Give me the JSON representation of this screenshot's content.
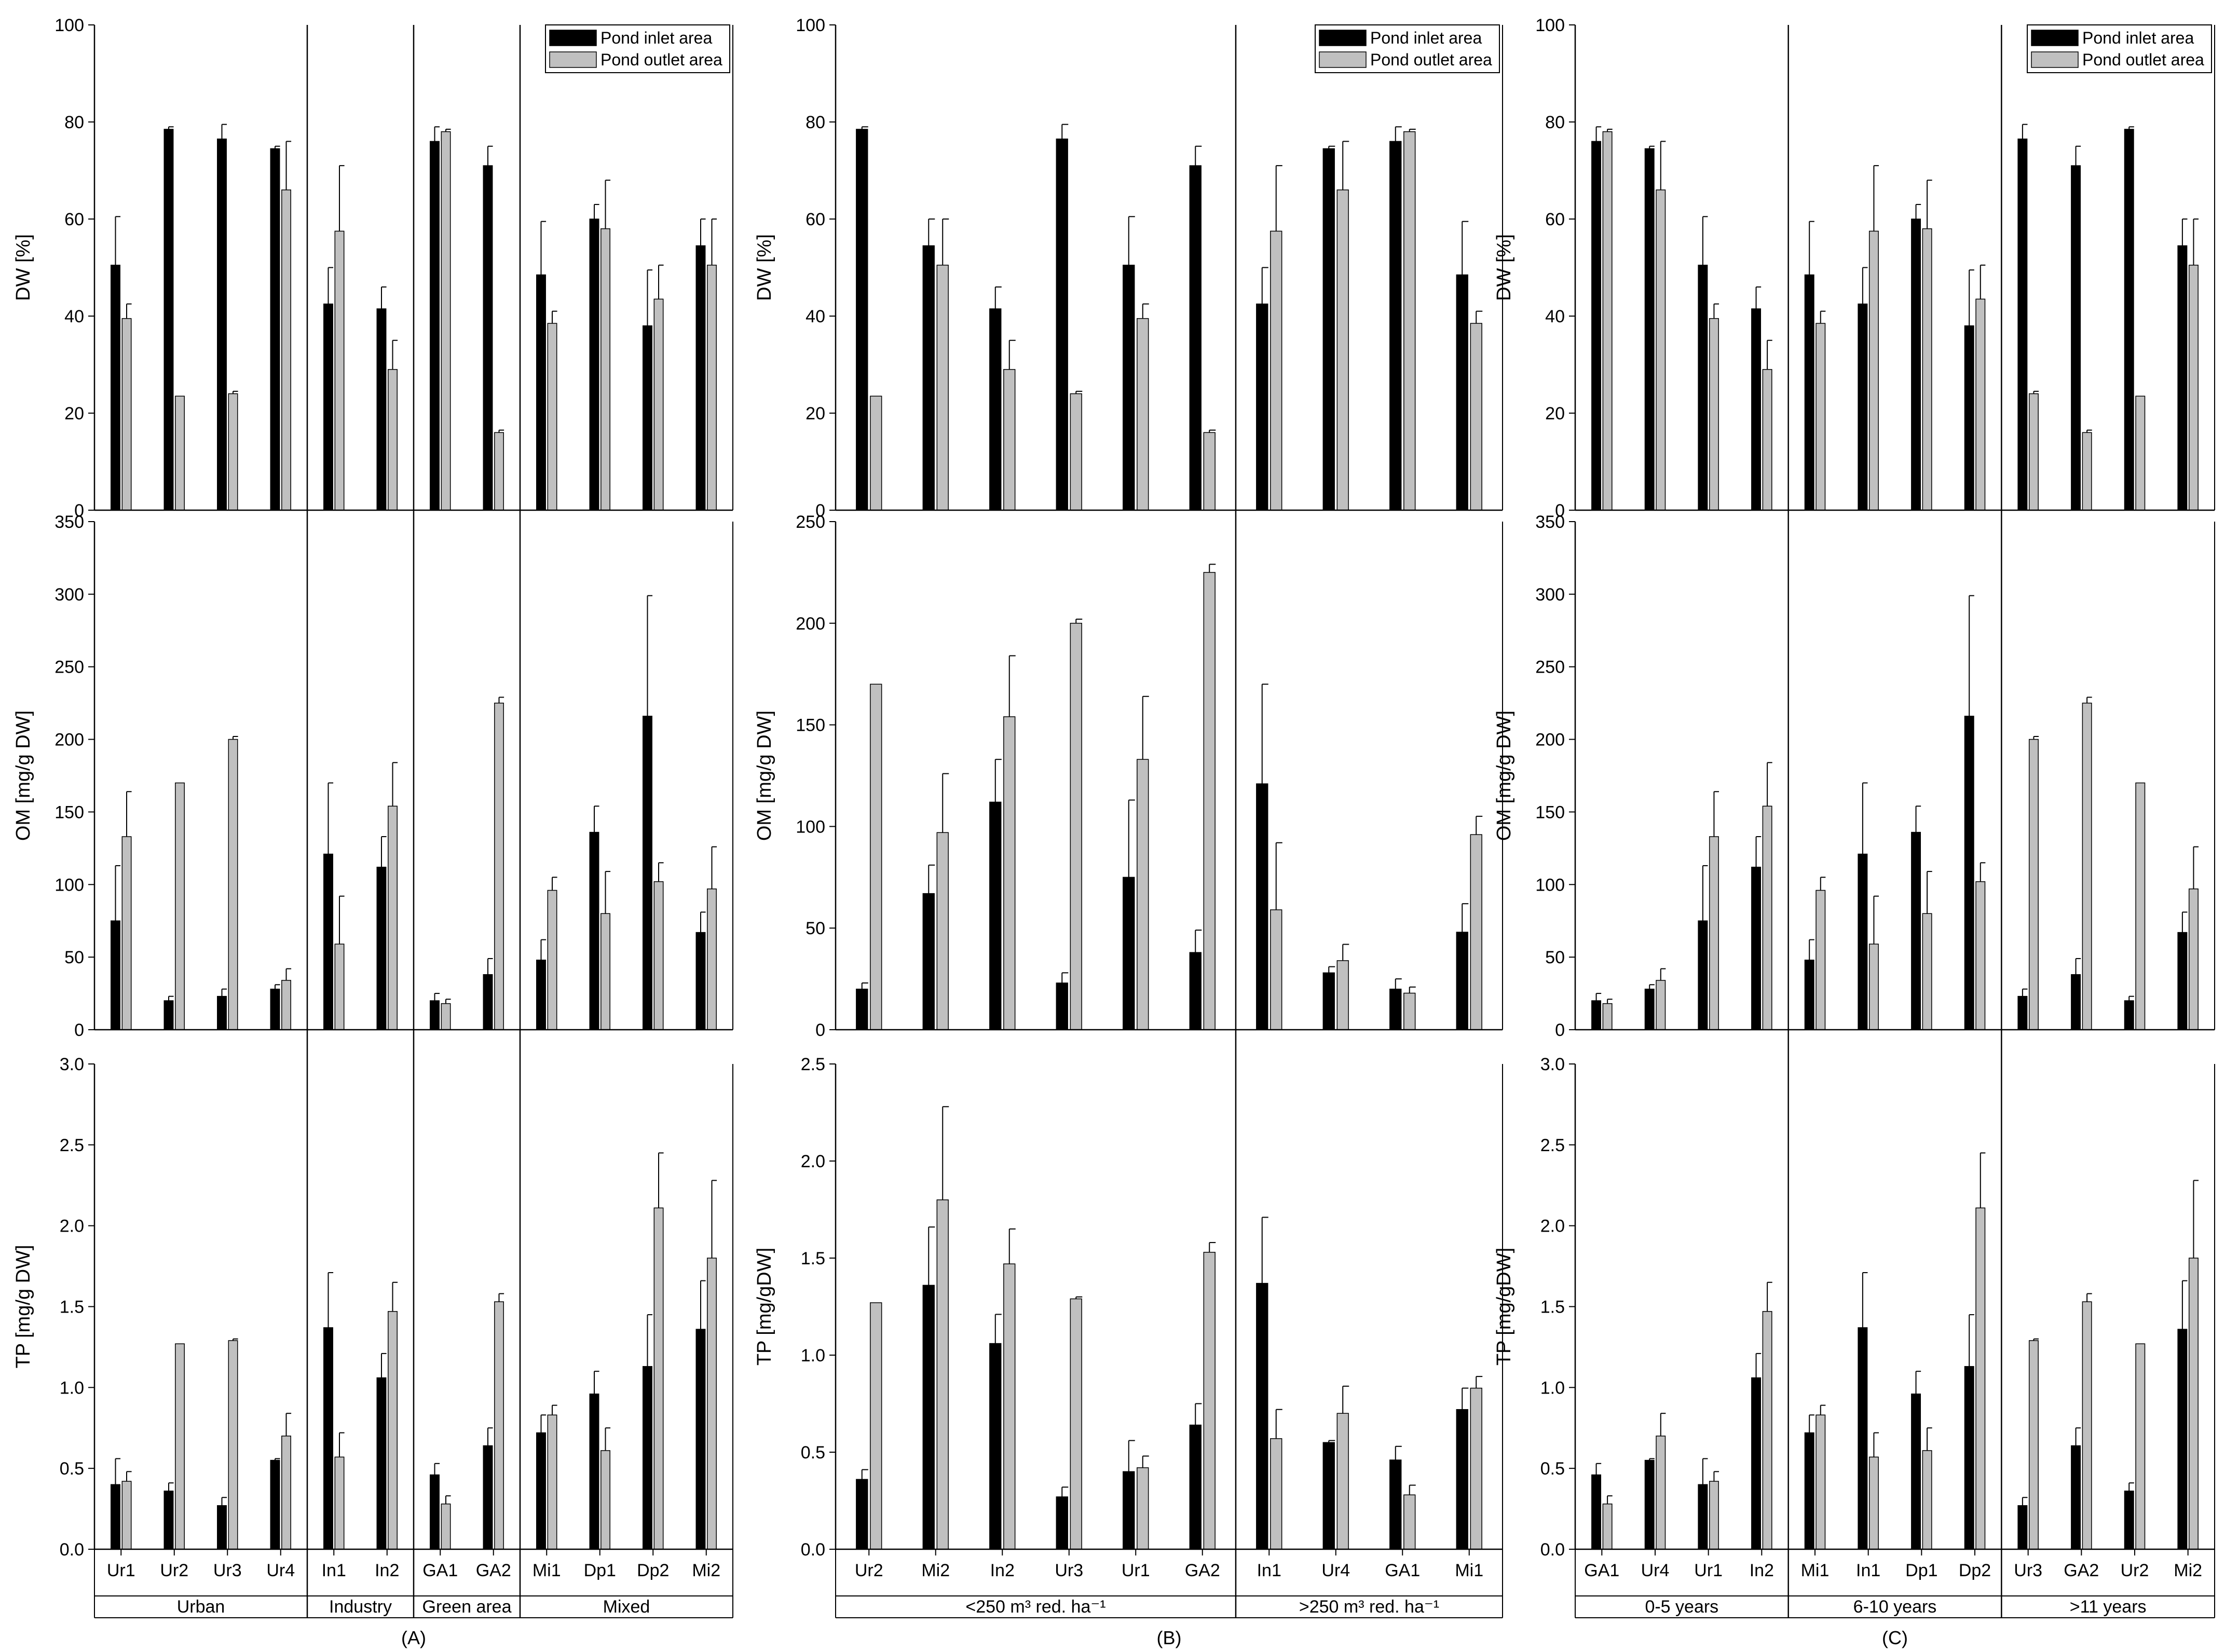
{
  "legend": {
    "inlet": "Pond inlet area",
    "outlet": "Pond outlet area",
    "inlet_color": "#000000",
    "outlet_color": "#c0c0c0"
  },
  "chart_data": [
    {
      "type": "bar",
      "panel_label": "(A)",
      "categories": [
        "Ur1",
        "Ur2",
        "Ur3",
        "Ur4",
        "In1",
        "In2",
        "GA1",
        "GA2",
        "Mi1",
        "Dp1",
        "Dp2",
        "Mi2"
      ],
      "groups": [
        {
          "label": "Urban",
          "count": 4
        },
        {
          "label": "Industry",
          "count": 2
        },
        {
          "label": "Green area",
          "count": 2
        },
        {
          "label": "Mixed",
          "count": 4
        }
      ],
      "rows": [
        {
          "ylabel": "DW [%]",
          "ylim": [
            0,
            100
          ],
          "yticks": [
            "0",
            "20",
            "40",
            "60",
            "80",
            "100"
          ],
          "series": [
            {
              "name": "Pond inlet area",
              "values": [
                50.5,
                78.5,
                76.5,
                74.5,
                42.5,
                41.5,
                76,
                71,
                48.5,
                60,
                38,
                54.5
              ],
              "errors": [
                10,
                0.5,
                3,
                0.5,
                7.5,
                4.5,
                3,
                4,
                11,
                3,
                11.5,
                5.5
              ]
            },
            {
              "name": "Pond outlet area",
              "values": [
                39.5,
                23.5,
                24,
                66,
                57.5,
                29,
                78,
                16,
                38.5,
                58,
                43.5,
                50.5
              ],
              "errors": [
                3,
                0,
                0.5,
                10,
                13.5,
                6,
                0.5,
                0.5,
                2.5,
                10,
                7,
                9.5
              ]
            }
          ]
        },
        {
          "ylabel": "OM [mg/g DW]",
          "ylim": [
            0,
            350
          ],
          "yticks": [
            "0",
            "50",
            "100",
            "150",
            "200",
            "250",
            "300",
            "350"
          ],
          "series": [
            {
              "name": "Pond inlet area",
              "values": [
                75,
                20,
                23,
                28,
                121,
                112,
                20,
                38,
                48,
                136,
                216,
                67
              ],
              "errors": [
                38,
                3,
                5,
                3,
                49,
                21,
                5,
                11,
                14,
                18,
                83,
                14
              ]
            },
            {
              "name": "Pond outlet area",
              "values": [
                133,
                170,
                200,
                34,
                59,
                154,
                18,
                225,
                96,
                80,
                102,
                97
              ],
              "errors": [
                31,
                0,
                2,
                8,
                33,
                30,
                3,
                4,
                9,
                29,
                13,
                29
              ]
            }
          ]
        },
        {
          "ylabel": "TP [mg/g DW]",
          "ylim": [
            0,
            3
          ],
          "yticks": [
            "0.0",
            "0.5",
            "1.0",
            "1.5",
            "2.0",
            "2.5",
            "3.0"
          ],
          "series": [
            {
              "name": "Pond inlet area",
              "values": [
                0.4,
                0.36,
                0.27,
                0.55,
                1.37,
                1.06,
                0.46,
                0.64,
                0.72,
                0.96,
                1.13,
                1.36
              ],
              "errors": [
                0.16,
                0.05,
                0.05,
                0.01,
                0.34,
                0.15,
                0.07,
                0.11,
                0.11,
                0.14,
                0.32,
                0.3
              ]
            },
            {
              "name": "Pond outlet area",
              "values": [
                0.42,
                1.27,
                1.29,
                0.7,
                0.57,
                1.47,
                0.28,
                1.53,
                0.83,
                0.61,
                2.11,
                1.8
              ],
              "errors": [
                0.06,
                0,
                0.01,
                0.14,
                0.15,
                0.18,
                0.05,
                0.05,
                0.06,
                0.14,
                0.34,
                0.48
              ]
            }
          ]
        }
      ]
    },
    {
      "type": "bar",
      "panel_label": "(B)",
      "categories": [
        "Ur2",
        "Mi2",
        "In2",
        "Ur3",
        "Ur1",
        "GA2",
        "In1",
        "Ur4",
        "GA1",
        "Mi1"
      ],
      "groups": [
        {
          "label": "<250 m³ red. ha⁻¹",
          "count": 6
        },
        {
          "label": ">250 m³ red. ha⁻¹",
          "count": 4
        }
      ],
      "rows": [
        {
          "ylabel": "DW [%]",
          "ylim": [
            0,
            100
          ],
          "yticks": [
            "0",
            "20",
            "40",
            "60",
            "80",
            "100"
          ],
          "series": [
            {
              "name": "Pond inlet area",
              "values": [
                78.5,
                54.5,
                41.5,
                76.5,
                50.5,
                71,
                42.5,
                74.5,
                76,
                48.5
              ],
              "errors": [
                0.5,
                5.5,
                4.5,
                3,
                10,
                4,
                7.5,
                0.5,
                3,
                11
              ]
            },
            {
              "name": "Pond outlet area",
              "values": [
                23.5,
                50.5,
                29,
                24,
                39.5,
                16,
                57.5,
                66,
                78,
                38.5
              ],
              "errors": [
                0,
                9.5,
                6,
                0.5,
                3,
                0.5,
                13.5,
                10,
                0.5,
                2.5
              ]
            }
          ]
        },
        {
          "ylabel": "OM [mg/g DW]",
          "ylim": [
            0,
            250
          ],
          "yticks": [
            "0",
            "50",
            "100",
            "150",
            "200",
            "250"
          ],
          "series": [
            {
              "name": "Pond inlet area",
              "values": [
                20,
                67,
                112,
                23,
                75,
                38,
                121,
                28,
                20,
                48
              ],
              "errors": [
                3,
                14,
                21,
                5,
                38,
                11,
                49,
                3,
                5,
                14
              ]
            },
            {
              "name": "Pond outlet area",
              "values": [
                170,
                97,
                154,
                200,
                133,
                225,
                59,
                34,
                18,
                96
              ],
              "errors": [
                0,
                29,
                30,
                2,
                31,
                4,
                33,
                8,
                3,
                9
              ]
            }
          ]
        },
        {
          "ylabel": "TP [mg/gDW]",
          "ylim": [
            0,
            2.5
          ],
          "yticks": [
            "0.0",
            "0.5",
            "1.0",
            "1.5",
            "2.0",
            "2.5"
          ],
          "series": [
            {
              "name": "Pond inlet area",
              "values": [
                0.36,
                1.36,
                1.06,
                0.27,
                0.4,
                0.64,
                1.37,
                0.55,
                0.46,
                0.72
              ],
              "errors": [
                0.05,
                0.3,
                0.15,
                0.05,
                0.16,
                0.11,
                0.34,
                0.01,
                0.07,
                0.11
              ]
            },
            {
              "name": "Pond outlet area",
              "values": [
                1.27,
                1.8,
                1.47,
                1.29,
                0.42,
                1.53,
                0.57,
                0.7,
                0.28,
                0.83
              ],
              "errors": [
                0,
                0.48,
                0.18,
                0.01,
                0.06,
                0.05,
                0.15,
                0.14,
                0.05,
                0.06
              ]
            }
          ]
        }
      ]
    },
    {
      "type": "bar",
      "panel_label": "(C)",
      "categories": [
        "GA1",
        "Ur4",
        "Ur1",
        "In2",
        "Mi1",
        "In1",
        "Dp1",
        "Dp2",
        "Ur3",
        "GA2",
        "Ur2",
        "Mi2"
      ],
      "groups": [
        {
          "label": "0-5 years",
          "count": 4
        },
        {
          "label": "6-10 years",
          "count": 4
        },
        {
          "label": ">11 years",
          "count": 4
        }
      ],
      "rows": [
        {
          "ylabel": "DW [%]",
          "ylim": [
            0,
            100
          ],
          "yticks": [
            "0",
            "20",
            "40",
            "60",
            "80",
            "100"
          ],
          "series": [
            {
              "name": "Pond inlet area",
              "values": [
                76,
                74.5,
                50.5,
                41.5,
                48.5,
                42.5,
                60,
                38,
                76.5,
                71,
                78.5,
                54.5
              ],
              "errors": [
                3,
                0.5,
                10,
                4.5,
                11,
                7.5,
                3,
                11.5,
                3,
                4,
                0.5,
                5.5
              ]
            },
            {
              "name": "Pond outlet area",
              "values": [
                78,
                66,
                39.5,
                29,
                38.5,
                57.5,
                58,
                43.5,
                24,
                16,
                23.5,
                50.5
              ],
              "errors": [
                0.5,
                10,
                3,
                6,
                2.5,
                13.5,
                10,
                7,
                0.5,
                0.5,
                0,
                9.5
              ]
            }
          ]
        },
        {
          "ylabel": "OM [mg/g DW]",
          "ylim": [
            0,
            350
          ],
          "yticks": [
            "0",
            "50",
            "100",
            "150",
            "200",
            "250",
            "300",
            "350"
          ],
          "series": [
            {
              "name": "Pond inlet area",
              "values": [
                20,
                28,
                75,
                112,
                48,
                121,
                136,
                216,
                23,
                38,
                20,
                67
              ],
              "errors": [
                5,
                3,
                38,
                21,
                14,
                49,
                18,
                83,
                5,
                11,
                3,
                14
              ]
            },
            {
              "name": "Pond outlet area",
              "values": [
                18,
                34,
                133,
                154,
                96,
                59,
                80,
                102,
                200,
                225,
                170,
                97
              ],
              "errors": [
                3,
                8,
                31,
                30,
                9,
                33,
                29,
                13,
                2,
                4,
                0,
                29
              ]
            }
          ]
        },
        {
          "ylabel": "TP [mg/gDW]",
          "ylim": [
            0,
            3
          ],
          "yticks": [
            "0.0",
            "0.5",
            "1.0",
            "1.5",
            "2.0",
            "2.5",
            "3.0"
          ],
          "series": [
            {
              "name": "Pond inlet area",
              "values": [
                0.46,
                0.55,
                0.4,
                1.06,
                0.72,
                1.37,
                0.96,
                1.13,
                0.27,
                0.64,
                0.36,
                1.36
              ],
              "errors": [
                0.07,
                0.01,
                0.16,
                0.15,
                0.11,
                0.34,
                0.14,
                0.32,
                0.05,
                0.11,
                0.05,
                0.3
              ]
            },
            {
              "name": "Pond outlet area",
              "values": [
                0.28,
                0.7,
                0.42,
                1.47,
                0.83,
                0.57,
                0.61,
                2.11,
                1.29,
                1.53,
                1.27,
                1.8
              ],
              "errors": [
                0.05,
                0.14,
                0.06,
                0.18,
                0.06,
                0.15,
                0.14,
                0.34,
                0.01,
                0.05,
                0,
                0.48
              ]
            }
          ]
        }
      ]
    }
  ]
}
